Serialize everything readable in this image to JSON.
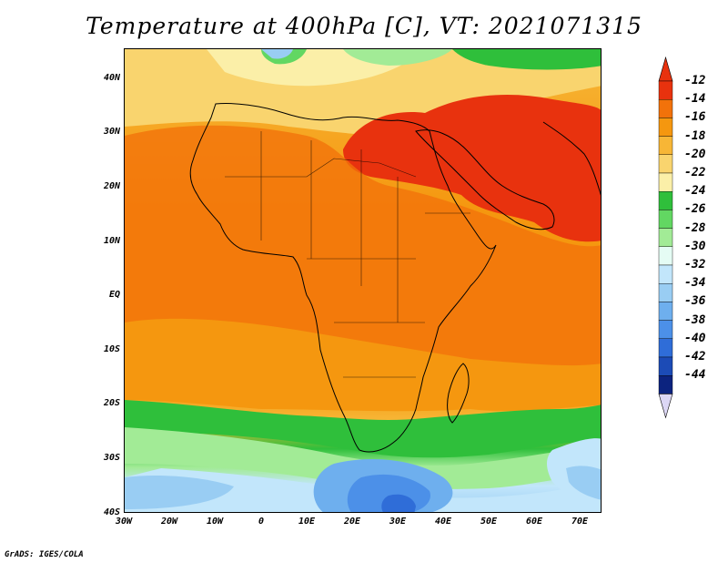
{
  "title": "Temperature at 400hPa [C], VT: 2021071315",
  "credit": "GrADS: IGES/COLA",
  "lat_labels": [
    "40N",
    "30N",
    "20N",
    "10N",
    "EQ",
    "10S",
    "20S",
    "30S",
    "40S"
  ],
  "lon_labels": [
    "30W",
    "20W",
    "10W",
    "0",
    "10E",
    "20E",
    "30E",
    "40E",
    "50E",
    "60E",
    "70E"
  ],
  "colorbar": {
    "labels": [
      "-12",
      "-14",
      "-16",
      "-18",
      "-20",
      "-22",
      "-24",
      "-26",
      "-28",
      "-30",
      "-32",
      "-34",
      "-36",
      "-38",
      "-40",
      "-42",
      "-44"
    ],
    "colors": [
      "#e8320e",
      "#f2720a",
      "#f5970f",
      "#f7b636",
      "#f9d46e",
      "#fbefa8",
      "#2fbf3b",
      "#62d762",
      "#a2eb96",
      "#e5fcf4",
      "#c2e6fb",
      "#99cdf3",
      "#6eafee",
      "#4c90e8",
      "#2f6dd8",
      "#1c4bb6",
      "#0c237f"
    ],
    "over_color": "#e8320e",
    "under_color": "#dcd7f5"
  }
}
